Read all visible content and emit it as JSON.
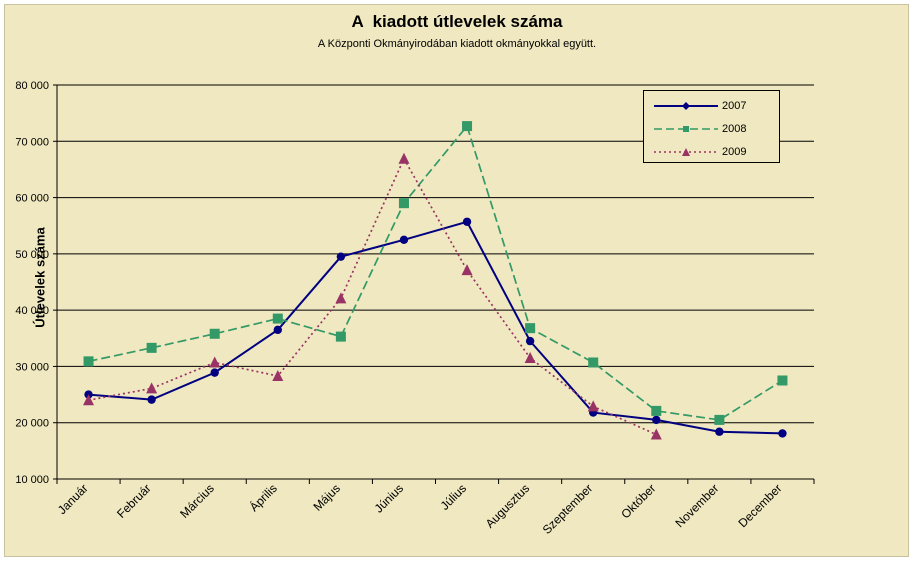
{
  "chart_data": {
    "type": "line",
    "title": "A  kiadott útlevelek száma",
    "subtitle": "A Központi Okmányirodában kiadott okmányokkal együtt.",
    "xlabel": "",
    "ylabel": "Útlevelek száma",
    "ylim": [
      10000,
      80000
    ],
    "y_ticks": [
      10000,
      20000,
      30000,
      40000,
      50000,
      60000,
      70000,
      80000
    ],
    "y_tick_labels": [
      "10 000",
      "20 000",
      "30 000",
      "40 000",
      "50 000",
      "60 000",
      "70 000",
      "80 000"
    ],
    "categories": [
      "Január",
      "Február",
      "Március",
      "Április",
      "Május",
      "Június",
      "Július",
      "Augusztus",
      "Szeptember",
      "Október",
      "November",
      "December"
    ],
    "grid": "horizontal",
    "legend_position": "top-right",
    "series": [
      {
        "name": "2007",
        "color": "#000080",
        "marker": "diamond",
        "dash": "solid",
        "values": [
          25000,
          24100,
          28900,
          36500,
          49500,
          52500,
          55700,
          34500,
          21800,
          20500,
          18400,
          18100
        ]
      },
      {
        "name": "2008",
        "color": "#339966",
        "marker": "square",
        "dash": "long-dash",
        "values": [
          30900,
          33300,
          35800,
          38500,
          35300,
          59000,
          72700,
          36800,
          30700,
          22100,
          20500,
          27500
        ]
      },
      {
        "name": "2009",
        "color": "#993366",
        "marker": "triangle",
        "dash": "dotted",
        "values": [
          24000,
          26100,
          30700,
          28300,
          42100,
          66900,
          47100,
          31500,
          22900,
          17900,
          null,
          null
        ]
      }
    ]
  }
}
